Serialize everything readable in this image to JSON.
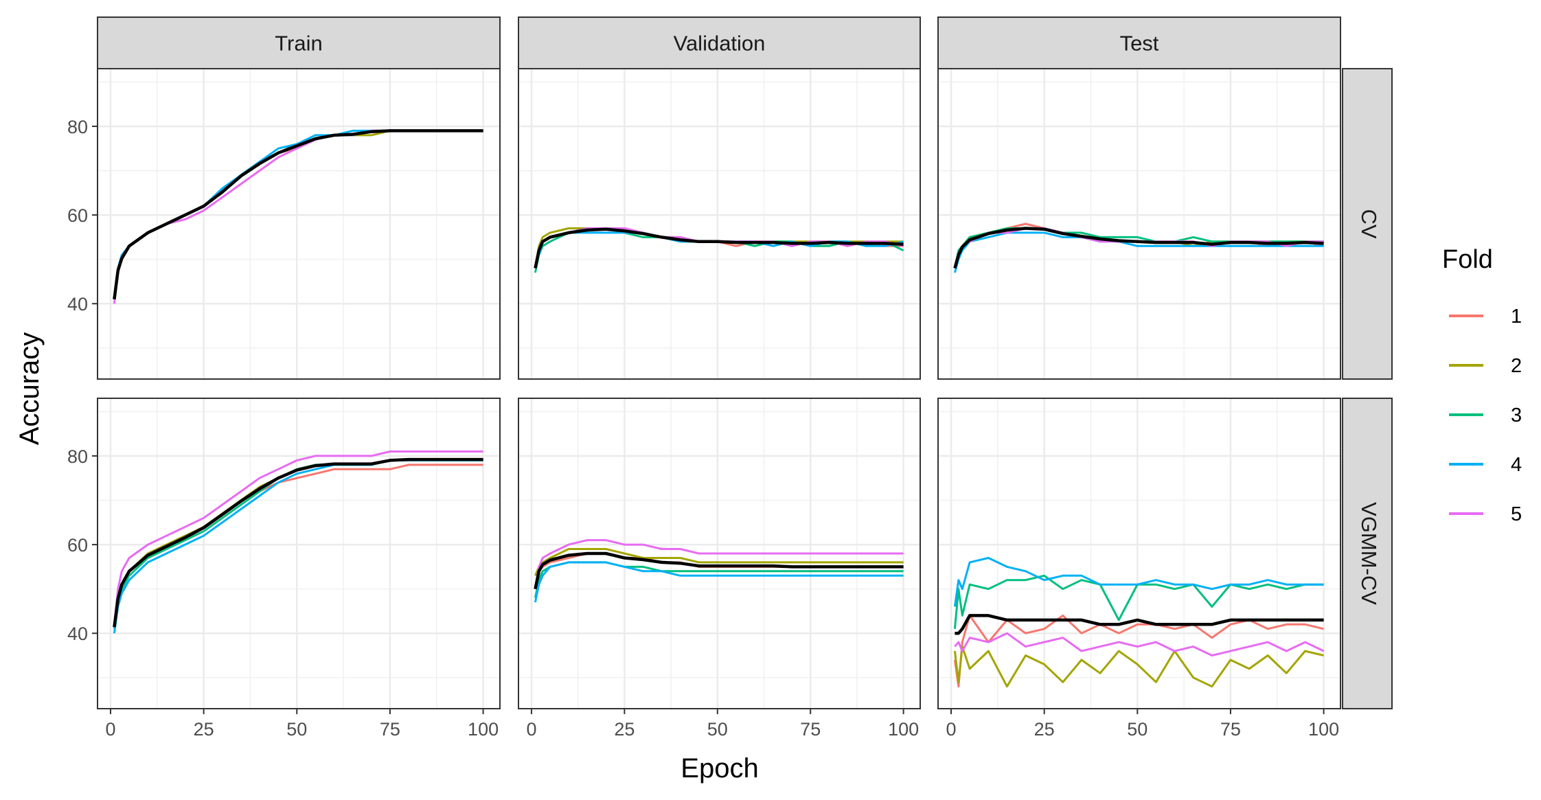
{
  "chart_data": {
    "type": "line",
    "xlabel": "Epoch",
    "ylabel": "Accuracy",
    "col_facets": [
      "Train",
      "Validation",
      "Test"
    ],
    "row_facets": [
      "CV",
      "VGMM-CV"
    ],
    "xlim": [
      1,
      100
    ],
    "ylim": [
      23,
      93
    ],
    "x_ticks": [
      0,
      25,
      50,
      75,
      100
    ],
    "y_ticks": [
      40,
      60,
      80
    ],
    "grid": true,
    "legend": {
      "title": "Fold",
      "placement": "right",
      "entries": [
        {
          "label": "1",
          "color": "#F8766D"
        },
        {
          "label": "2",
          "color": "#A3A500"
        },
        {
          "label": "3",
          "color": "#00BF7D"
        },
        {
          "label": "4",
          "color": "#00B0F6"
        },
        {
          "label": "5",
          "color": "#E76BF3"
        }
      ]
    },
    "mean_color": "#000000",
    "epochs": [
      1,
      2,
      3,
      5,
      10,
      15,
      20,
      25,
      30,
      35,
      40,
      45,
      50,
      55,
      60,
      65,
      70,
      75,
      80,
      85,
      90,
      95,
      100
    ],
    "panels": [
      {
        "row": "CV",
        "col": "Train",
        "series": [
          {
            "fold": "1",
            "values": [
              41,
              47,
              50,
              53,
              56,
              58,
              60,
              62,
              65,
              69,
              72,
              74,
              75,
              77,
              78,
              78,
              79,
              79,
              79,
              79,
              79,
              79,
              79
            ]
          },
          {
            "fold": "2",
            "values": [
              41,
              47,
              50,
              53,
              56,
              58,
              60,
              62,
              65,
              69,
              72,
              74,
              76,
              77,
              78,
              78,
              78,
              79,
              79,
              79,
              79,
              79,
              79
            ]
          },
          {
            "fold": "3",
            "values": [
              41,
              48,
              50,
              53,
              56,
              58,
              60,
              62,
              66,
              69,
              72,
              74,
              76,
              77,
              78,
              78,
              79,
              79,
              79,
              79,
              79,
              79,
              79
            ]
          },
          {
            "fold": "4",
            "values": [
              41,
              48,
              51,
              53,
              56,
              58,
              60,
              62,
              66,
              69,
              72,
              75,
              76,
              78,
              78,
              79,
              79,
              79,
              79,
              79,
              79,
              79,
              79
            ]
          },
          {
            "fold": "5",
            "values": [
              40,
              47,
              50,
              53,
              56,
              58,
              59,
              61,
              64,
              67,
              70,
              73,
              75,
              77,
              78,
              78,
              79,
              79,
              79,
              79,
              79,
              79,
              79
            ]
          }
        ],
        "mean": [
          41,
          47.5,
          50.2,
          53,
          56,
          58,
          60,
          62,
          65.2,
          68.8,
          71.6,
          74,
          75.6,
          77.2,
          78,
          78.2,
          78.8,
          79,
          79,
          79,
          79,
          79,
          79
        ]
      },
      {
        "row": "CV",
        "col": "Validation",
        "series": [
          {
            "fold": "1",
            "values": [
              48,
              52,
              54,
              55,
              56,
              57,
              57,
              56,
              56,
              55,
              54,
              54,
              54,
              53,
              54,
              54,
              53,
              54,
              54,
              53,
              54,
              53,
              53
            ]
          },
          {
            "fold": "2",
            "values": [
              48,
              53,
              55,
              56,
              57,
              57,
              57,
              57,
              56,
              55,
              55,
              54,
              54,
              54,
              54,
              54,
              54,
              54,
              54,
              54,
              54,
              54,
              54
            ]
          },
          {
            "fold": "3",
            "values": [
              47,
              51,
              53,
              54,
              56,
              57,
              57,
              56,
              55,
              55,
              54,
              54,
              54,
              54,
              53,
              54,
              54,
              53,
              53,
              54,
              53,
              54,
              52
            ]
          },
          {
            "fold": "4",
            "values": [
              48,
              51,
              54,
              55,
              56,
              56,
              56,
              56,
              56,
              55,
              54,
              54,
              54,
              54,
              54,
              53,
              54,
              53,
              54,
              54,
              53,
              53,
              54
            ]
          },
          {
            "fold": "5",
            "values": [
              48,
              52,
              54,
              55,
              56,
              57,
              57,
              57,
              56,
              55,
              55,
              54,
              54,
              54,
              54,
              54,
              53,
              54,
              54,
              53,
              54,
              54,
              53
            ]
          }
        ],
        "mean": [
          48,
          52,
          54,
          55,
          56,
          56.6,
          56.8,
          56.4,
          55.8,
          55,
          54.4,
          54,
          54,
          53.8,
          53.8,
          53.8,
          53.6,
          53.6,
          53.8,
          53.6,
          53.6,
          53.6,
          53.4
        ]
      },
      {
        "row": "CV",
        "col": "Test",
        "series": [
          {
            "fold": "1",
            "values": [
              48,
              51,
              53,
              54,
              56,
              57,
              58,
              57,
              56,
              55,
              55,
              54,
              54,
              54,
              54,
              54,
              53,
              54,
              54,
              53,
              54,
              54,
              53
            ]
          },
          {
            "fold": "2",
            "values": [
              48,
              51,
              53,
              55,
              56,
              57,
              57,
              57,
              56,
              55,
              55,
              54,
              54,
              54,
              54,
              53,
              54,
              54,
              54,
              54,
              54,
              54,
              54
            ]
          },
          {
            "fold": "3",
            "values": [
              48,
              52,
              53,
              55,
              56,
              57,
              57,
              57,
              56,
              56,
              55,
              55,
              55,
              54,
              54,
              55,
              54,
              54,
              54,
              54,
              54,
              54,
              54
            ]
          },
          {
            "fold": "4",
            "values": [
              47,
              50,
              52,
              54,
              55,
              56,
              56,
              56,
              55,
              55,
              54,
              54,
              53,
              53,
              53,
              53,
              53,
              53,
              53,
              53,
              53,
              53,
              53
            ]
          },
          {
            "fold": "5",
            "values": [
              48,
              51,
              53,
              54,
              56,
              56,
              57,
              57,
              56,
              55,
              54,
              54,
              54,
              54,
              54,
              54,
              53,
              54,
              54,
              54,
              53,
              54,
              54
            ]
          }
        ],
        "mean": [
          48,
          51,
          52.8,
          54.4,
          55.8,
          56.6,
          57,
          56.8,
          55.8,
          55.2,
          54.6,
          54.2,
          54,
          53.8,
          53.8,
          53.8,
          53.4,
          53.8,
          53.8,
          53.6,
          53.6,
          53.8,
          53.6
        ]
      },
      {
        "row": "VGMM-CV",
        "col": "Train",
        "series": [
          {
            "fold": "1",
            "values": [
              42,
              48,
              51,
              54,
              57,
              59,
              61,
              64,
              67,
              70,
              72,
              74,
              75,
              76,
              77,
              77,
              77,
              77,
              78,
              78,
              78,
              78,
              78
            ]
          },
          {
            "fold": "2",
            "values": [
              42,
              48,
              51,
              54,
              58,
              60,
              62,
              64,
              67,
              70,
              73,
              75,
              77,
              78,
              78,
              78,
              78,
              79,
              79,
              79,
              79,
              79,
              79
            ]
          },
          {
            "fold": "3",
            "values": [
              41,
              47,
              50,
              53,
              57,
              59,
              61,
              63,
              66,
              69,
              72,
              75,
              77,
              78,
              78,
              78,
              78,
              79,
              79,
              79,
              79,
              79,
              79
            ]
          },
          {
            "fold": "4",
            "values": [
              40,
              46,
              49,
              52,
              56,
              58,
              60,
              62,
              65,
              68,
              71,
              74,
              76,
              77,
              78,
              78,
              78,
              79,
              79,
              79,
              79,
              79,
              79
            ]
          },
          {
            "fold": "5",
            "values": [
              42,
              50,
              54,
              57,
              60,
              62,
              64,
              66,
              69,
              72,
              75,
              77,
              79,
              80,
              80,
              80,
              80,
              81,
              81,
              81,
              81,
              81,
              81
            ]
          }
        ],
        "mean": [
          41.4,
          47.8,
          51,
          54,
          57.6,
          59.6,
          61.6,
          63.8,
          66.8,
          69.8,
          72.6,
          75,
          76.8,
          77.8,
          78.2,
          78.2,
          78.2,
          79,
          79.2,
          79.2,
          79.2,
          79.2,
          79.2
        ]
      },
      {
        "row": "VGMM-CV",
        "col": "Validation",
        "series": [
          {
            "fold": "1",
            "values": [
              50,
              54,
              55,
              56,
              57,
              58,
              58,
              57,
              57,
              56,
              56,
              55,
              55,
              55,
              55,
              55,
              55,
              55,
              55,
              55,
              55,
              55,
              55
            ]
          },
          {
            "fold": "2",
            "values": [
              53,
              55,
              56,
              57,
              59,
              59,
              59,
              58,
              57,
              57,
              57,
              56,
              56,
              56,
              56,
              56,
              56,
              56,
              56,
              56,
              56,
              56,
              56
            ]
          },
          {
            "fold": "3",
            "values": [
              48,
              52,
              54,
              55,
              56,
              56,
              56,
              55,
              55,
              54,
              54,
              54,
              54,
              54,
              54,
              54,
              54,
              54,
              54,
              54,
              54,
              54,
              54
            ]
          },
          {
            "fold": "4",
            "values": [
              47,
              51,
              53,
              55,
              56,
              56,
              56,
              55,
              54,
              54,
              53,
              53,
              53,
              53,
              53,
              53,
              53,
              53,
              53,
              53,
              53,
              53,
              53
            ]
          },
          {
            "fold": "5",
            "values": [
              50,
              55,
              57,
              58,
              60,
              61,
              61,
              60,
              60,
              59,
              59,
              58,
              58,
              58,
              58,
              58,
              58,
              58,
              58,
              58,
              58,
              58,
              58
            ]
          }
        ],
        "mean": [
          50,
          54,
          55.5,
          56.5,
          57.6,
          58,
          58,
          57,
          56.6,
          56,
          55.8,
          55.2,
          55.2,
          55.2,
          55.2,
          55.2,
          55,
          55,
          55,
          55,
          55,
          55,
          55
        ]
      },
      {
        "row": "VGMM-CV",
        "col": "Test",
        "series": [
          {
            "fold": "1",
            "values": [
              34,
              28,
              38,
              44,
              38,
              43,
              40,
              41,
              44,
              40,
              42,
              40,
              42,
              42,
              41,
              42,
              39,
              42,
              43,
              41,
              42,
              42,
              41
            ]
          },
          {
            "fold": "2",
            "values": [
              36,
              29,
              37,
              32,
              36,
              28,
              35,
              33,
              29,
              34,
              31,
              36,
              33,
              29,
              36,
              30,
              28,
              34,
              32,
              35,
              31,
              36,
              35
            ]
          },
          {
            "fold": "3",
            "values": [
              41,
              50,
              44,
              51,
              50,
              52,
              52,
              53,
              50,
              52,
              51,
              43,
              51,
              51,
              50,
              51,
              46,
              51,
              50,
              51,
              50,
              51,
              51
            ]
          },
          {
            "fold": "4",
            "values": [
              46,
              52,
              50,
              56,
              57,
              55,
              54,
              52,
              53,
              53,
              51,
              51,
              51,
              52,
              51,
              51,
              50,
              51,
              51,
              52,
              51,
              51,
              51
            ]
          },
          {
            "fold": "5",
            "values": [
              37,
              38,
              36,
              39,
              38,
              40,
              37,
              38,
              39,
              36,
              37,
              38,
              37,
              38,
              36,
              37,
              35,
              36,
              37,
              38,
              36,
              38,
              36
            ]
          }
        ],
        "mean": [
          40,
          40,
          41,
          44,
          44,
          43,
          43,
          43,
          43,
          43,
          42,
          42,
          43,
          42,
          42,
          42,
          42,
          43,
          43,
          43,
          43,
          43,
          43
        ]
      }
    ]
  }
}
